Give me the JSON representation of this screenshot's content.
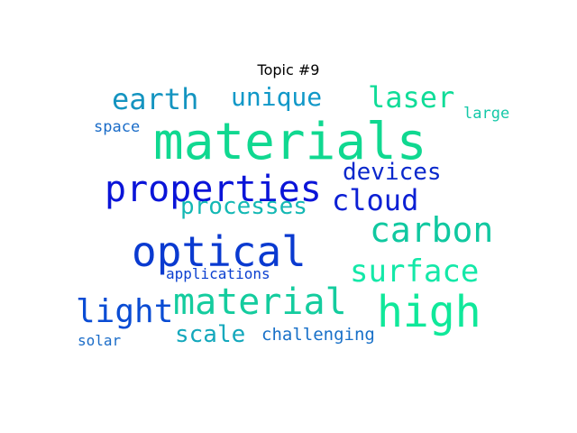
{
  "title": "Topic #9",
  "words": [
    {
      "text": "materials",
      "color": "#10d890"
    },
    {
      "text": "properties",
      "color": "#0a14d8"
    },
    {
      "text": "optical",
      "color": "#0a3ad0"
    },
    {
      "text": "high",
      "color": "#10e89a"
    },
    {
      "text": "material",
      "color": "#14cc9e"
    },
    {
      "text": "carbon",
      "color": "#10c8a0"
    },
    {
      "text": "surface",
      "color": "#14e8a8"
    },
    {
      "text": "earth",
      "color": "#1494c0"
    },
    {
      "text": "laser",
      "color": "#10dc98"
    },
    {
      "text": "unique",
      "color": "#1098c8"
    },
    {
      "text": "cloud",
      "color": "#0c20d4"
    },
    {
      "text": "light",
      "color": "#0a4cd4"
    },
    {
      "text": "processes",
      "color": "#14b8b4"
    },
    {
      "text": "devices",
      "color": "#0a28cc"
    },
    {
      "text": "scale",
      "color": "#14a8bc"
    },
    {
      "text": "challenging",
      "color": "#1870c8"
    },
    {
      "text": "applications",
      "color": "#0c40d0"
    },
    {
      "text": "space",
      "color": "#1a6cc8"
    },
    {
      "text": "large",
      "color": "#14c8a8"
    },
    {
      "text": "solar",
      "color": "#1a6cc8"
    }
  ]
}
